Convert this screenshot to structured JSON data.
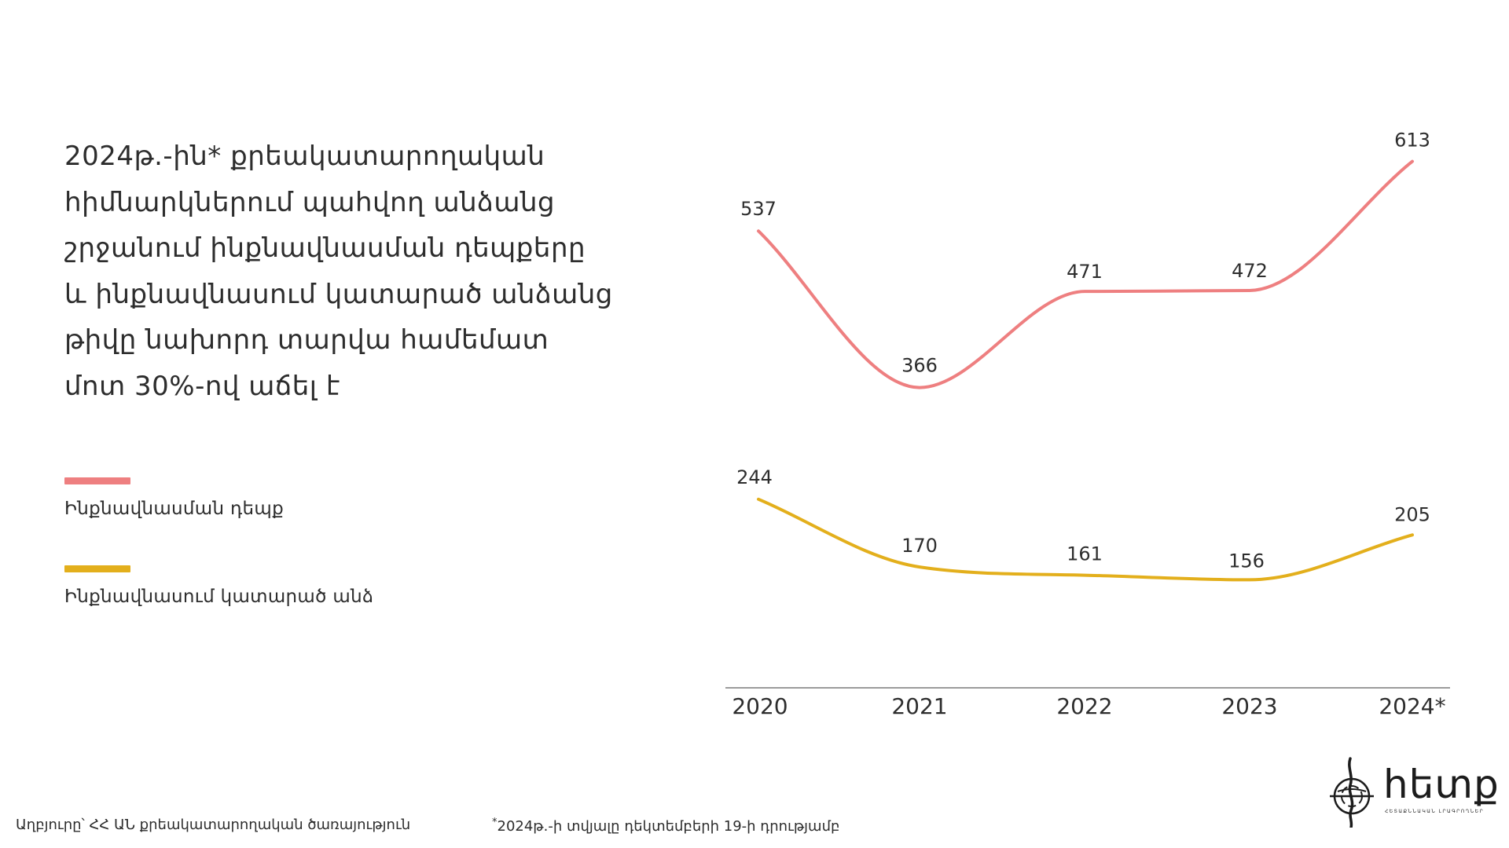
{
  "headline": {
    "lines": [
      "2024թ.-ին* քրեակատարողական",
      "հիմնարկներում պահվող անձանց",
      "շրջանում ինքնավնասման դեպքերը",
      "և ինքնավնասում կատարած անձանց",
      "թիվը նախորդ տարվա համեմատ",
      "մոտ 30%-ով աճել է"
    ]
  },
  "legend": [
    {
      "label": "Ինքնավնասման դեպք",
      "color": "#ee7f80"
    },
    {
      "label": "Ինքնավնասում կատարած անձ",
      "color": "#e3af1c"
    }
  ],
  "chart_data": {
    "type": "line",
    "categories": [
      "2020",
      "2021",
      "2022",
      "2023",
      "2024*"
    ],
    "series": [
      {
        "name": "Ինքնավնասման դեպք",
        "values": [
          537,
          366,
          471,
          472,
          613
        ],
        "color": "#ee7f80"
      },
      {
        "name": "Ինքնավնասում կատարած անձ",
        "values": [
          244,
          170,
          161,
          156,
          205
        ],
        "color": "#e3af1c"
      }
    ],
    "ylim": [
      0,
      650
    ],
    "data_labels": true,
    "grid": false,
    "legend_position": "left"
  },
  "footer": {
    "source": "Աղբյուրը՝ ՀՀ ԱՆ քրեակատարողական ծառայություն",
    "note_mark": "*",
    "note": "2024թ.-ի տվյալը դեկտեմբերի 19-ի դրությամբ"
  },
  "logo": {
    "text": "հետք",
    "subtitle": "ՀԵՏԱՔՆՆԱԿԱՆ ԼՐԱԳՐՈՂՆԵՐ"
  },
  "colors": {
    "axis": "#7a7a7a",
    "text": "#2d2d2d"
  }
}
